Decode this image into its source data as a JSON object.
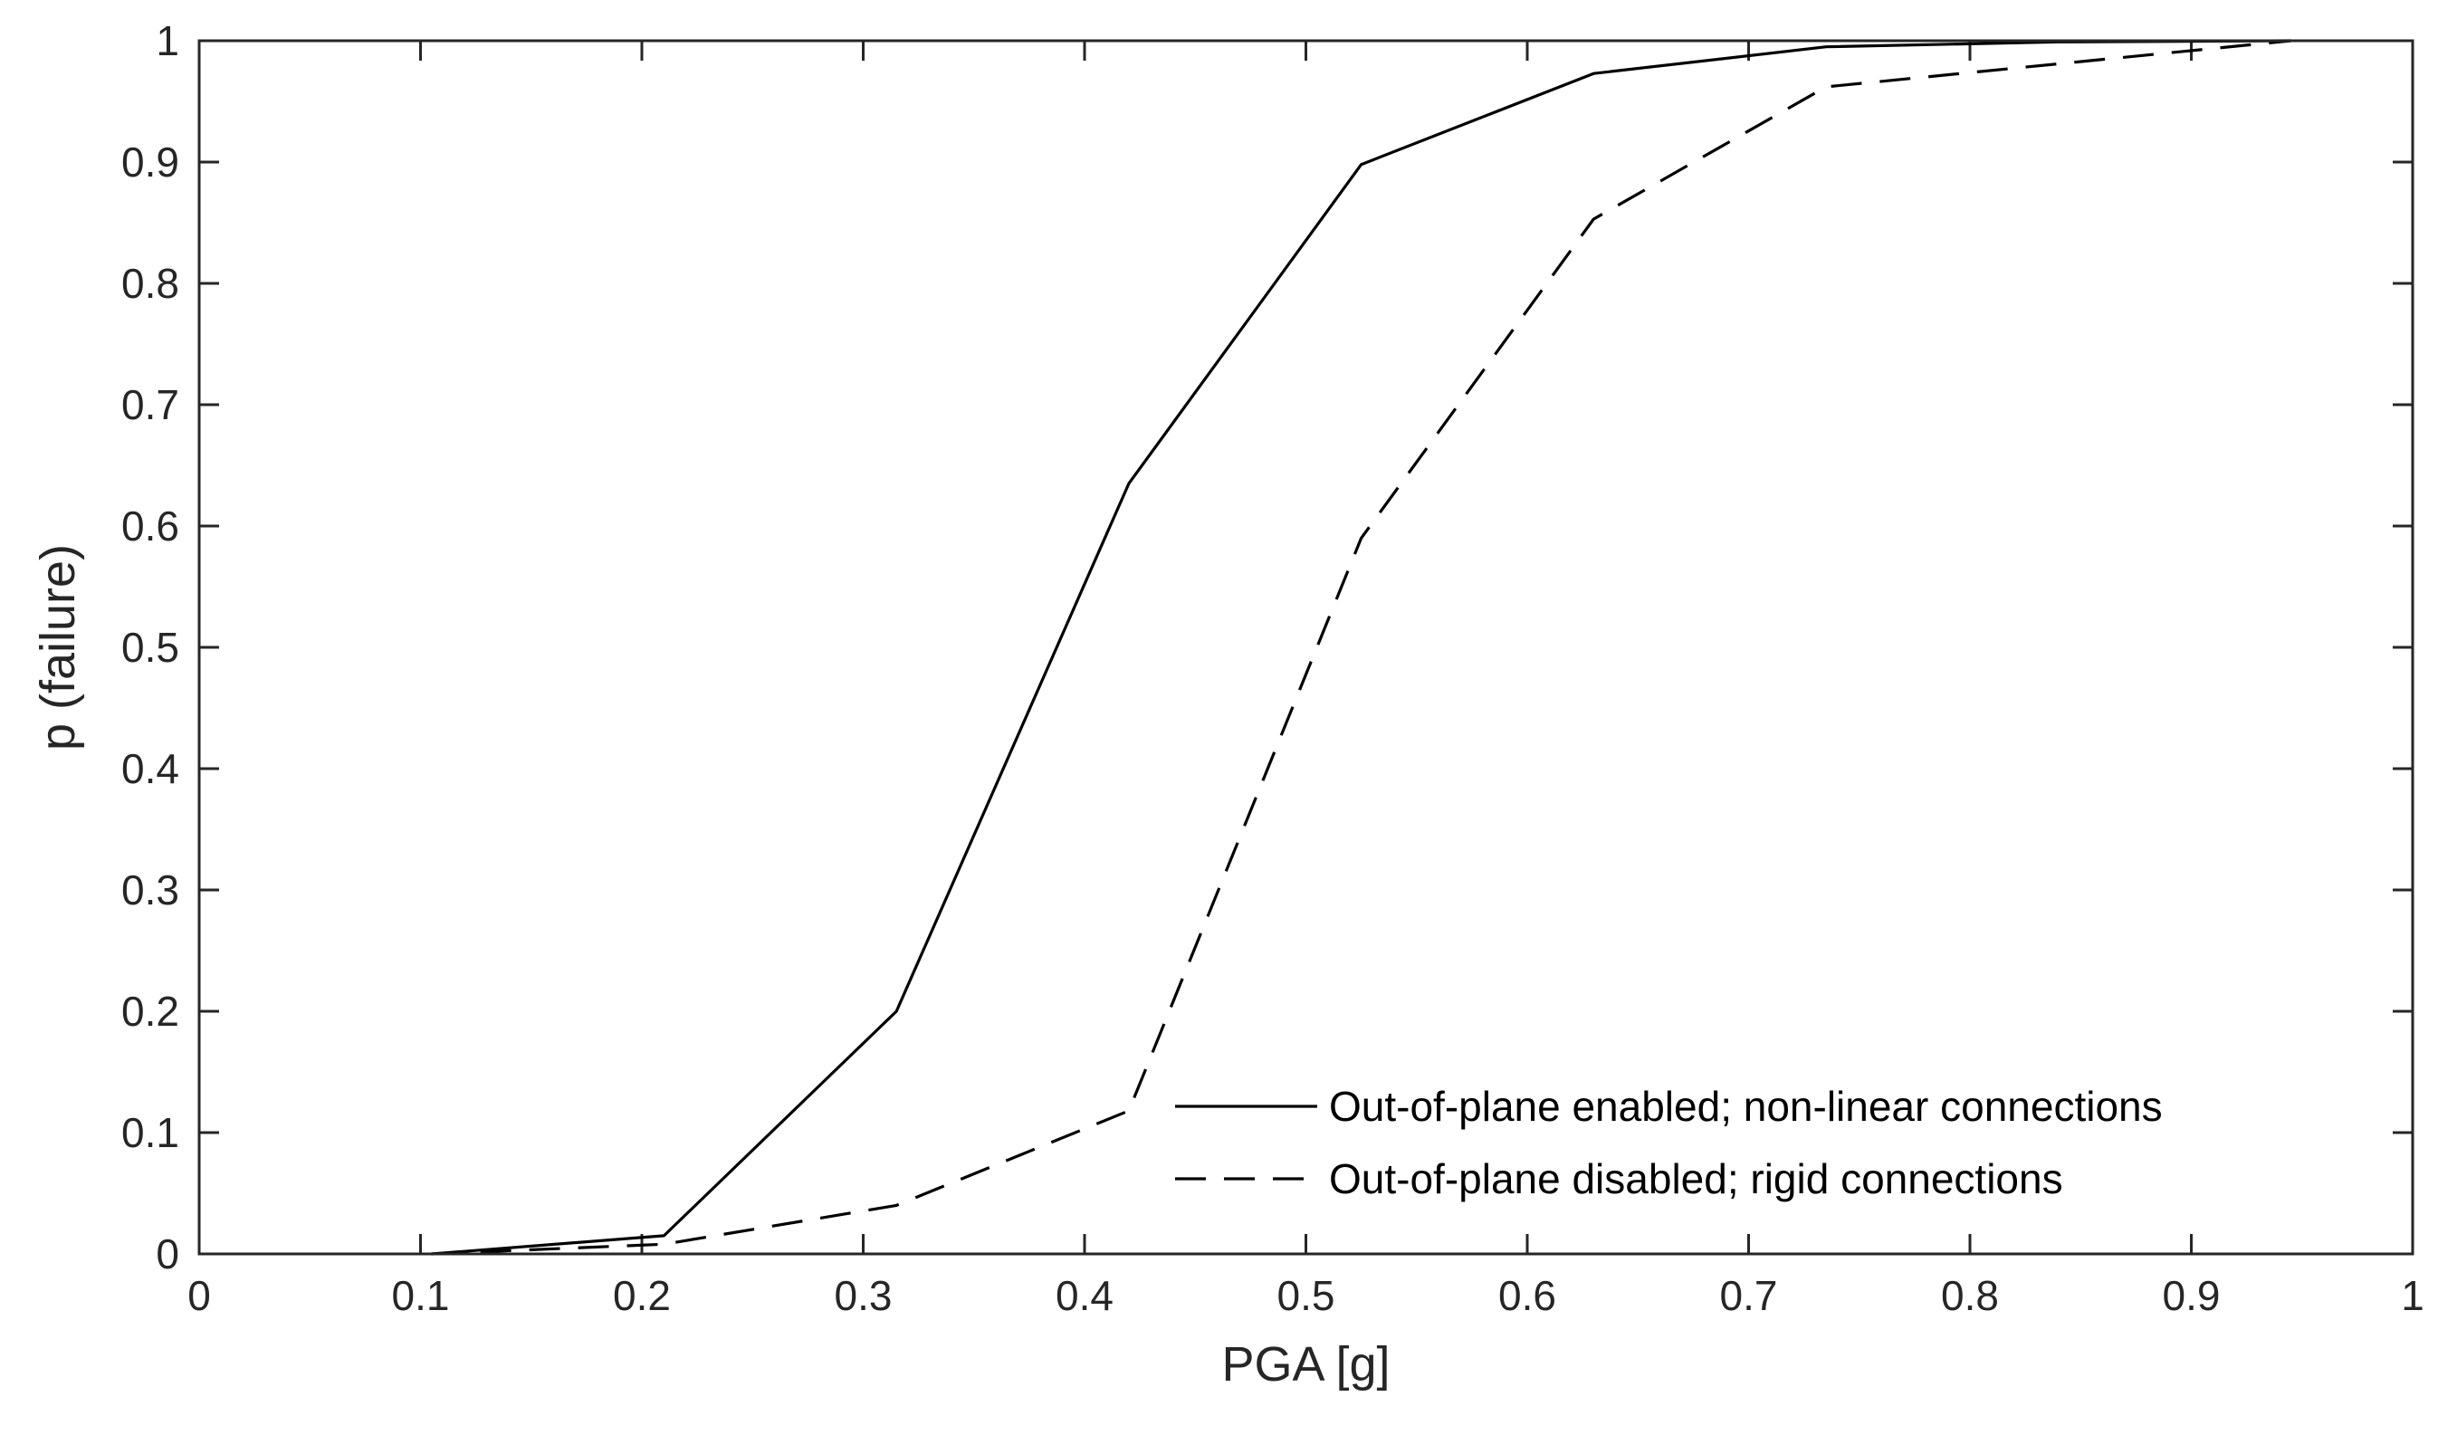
{
  "chart_data": {
    "type": "line",
    "title": "",
    "xlabel": "PGA [g]",
    "ylabel": "p (failure)",
    "xlim": [
      0,
      1
    ],
    "ylim": [
      0,
      1
    ],
    "xticks": [
      0,
      0.1,
      0.2,
      0.3,
      0.4,
      0.5,
      0.6,
      0.7,
      0.8,
      0.9,
      1
    ],
    "xtick_labels": [
      "0",
      "0.1",
      "0.2",
      "0.3",
      "0.4",
      "0.5",
      "0.6",
      "0.7",
      "0.8",
      "0.9",
      "1"
    ],
    "yticks": [
      0,
      0.1,
      0.2,
      0.3,
      0.4,
      0.5,
      0.6,
      0.7,
      0.8,
      0.9,
      1
    ],
    "ytick_labels": [
      "0",
      "0.1",
      "0.2",
      "0.3",
      "0.4",
      "0.5",
      "0.6",
      "0.7",
      "0.8",
      "0.9",
      "1"
    ],
    "grid": false,
    "legend_position": "bottom-right",
    "series": [
      {
        "name": "Out-of-plane enabled; non-linear connections",
        "style": "solid",
        "color": "#000000",
        "x": [
          0.105,
          0.21,
          0.315,
          0.42,
          0.525,
          0.63,
          0.735,
          0.84,
          0.945
        ],
        "y": [
          0.0,
          0.015,
          0.2,
          0.635,
          0.898,
          0.973,
          0.995,
          0.999,
          1.0
        ]
      },
      {
        "name": "Out-of-plane disabled; rigid connections",
        "style": "dashed",
        "color": "#000000",
        "x": [
          0.105,
          0.21,
          0.315,
          0.42,
          0.525,
          0.63,
          0.735,
          0.84,
          0.945
        ],
        "y": [
          0.0,
          0.008,
          0.04,
          0.118,
          0.59,
          0.853,
          0.962,
          0.981,
          1.0
        ]
      }
    ]
  }
}
